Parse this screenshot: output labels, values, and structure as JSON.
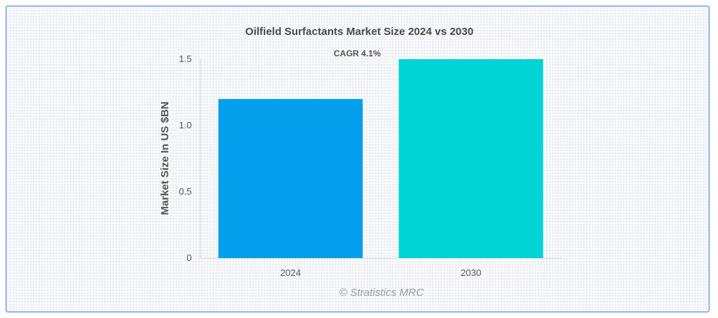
{
  "chart_data": {
    "type": "bar",
    "title": "Oilfield Surfactants Market Size 2024 vs 2030",
    "ylabel": "Market Size In US $BN",
    "xlabel": "",
    "categories": [
      "2024",
      "2030"
    ],
    "values": [
      1.2,
      1.5
    ],
    "bar_colors": [
      "#039fec",
      "#00d3d3"
    ],
    "ylim": [
      0,
      1.5
    ],
    "yticks": [
      0,
      0.5,
      1.0,
      1.5
    ],
    "ytick_labels": [
      "0",
      "0.5",
      "1.0",
      "1.5"
    ],
    "annotation": "CAGR 4.1%",
    "credit": "© Stratistics MRC",
    "grid": false
  }
}
